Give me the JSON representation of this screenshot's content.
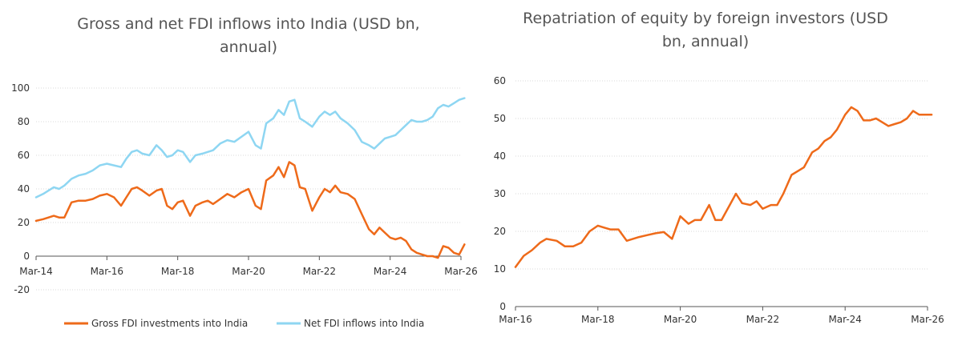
{
  "chart_data": [
    {
      "type": "line",
      "title": "Gross and net FDI inflows into India (USD bn, annual)",
      "xlabel": "",
      "ylabel": "",
      "x_tick_labels": [
        "Mar-14",
        "Mar-16",
        "Mar-18",
        "Mar-20",
        "Mar-22",
        "Mar-24",
        "Mar-26"
      ],
      "x_tick_years": [
        2014,
        2016,
        2018,
        2020,
        2022,
        2024,
        2026
      ],
      "ylim": [
        -20,
        100
      ],
      "y_ticks": [
        -20,
        0,
        20,
        40,
        60,
        80,
        100
      ],
      "grid": true,
      "legend": "bottom",
      "series": [
        {
          "name": "Gross FDI investments into India",
          "color": "#ee6a1a",
          "x": [
            2014.0,
            2014.2,
            2014.35,
            2014.5,
            2014.65,
            2014.8,
            2015.0,
            2015.2,
            2015.4,
            2015.6,
            2015.8,
            2016.0,
            2016.2,
            2016.4,
            2016.55,
            2016.7,
            2016.85,
            2017.0,
            2017.2,
            2017.4,
            2017.55,
            2017.7,
            2017.85,
            2018.0,
            2018.15,
            2018.35,
            2018.5,
            2018.7,
            2018.85,
            2019.0,
            2019.2,
            2019.4,
            2019.6,
            2019.8,
            2020.0,
            2020.2,
            2020.35,
            2020.5,
            2020.7,
            2020.85,
            2021.0,
            2021.15,
            2021.3,
            2021.45,
            2021.6,
            2021.8,
            2022.0,
            2022.15,
            2022.3,
            2022.45,
            2022.6,
            2022.8,
            2023.0,
            2023.2,
            2023.4,
            2023.55,
            2023.7,
            2023.85,
            2024.0,
            2024.15,
            2024.3,
            2024.45,
            2024.6,
            2024.75,
            2024.9,
            2025.05,
            2025.2,
            2025.35,
            2025.5,
            2025.65,
            2025.8,
            2025.95,
            2026.1
          ],
          "y": [
            21,
            22,
            23,
            24,
            23,
            23,
            32,
            33,
            33,
            34,
            36,
            37,
            35,
            30,
            35,
            40,
            41,
            39,
            36,
            39,
            40,
            30,
            28,
            32,
            33,
            24,
            30,
            32,
            33,
            31,
            34,
            37,
            35,
            38,
            40,
            30,
            28,
            45,
            48,
            53,
            47,
            56,
            54,
            41,
            40,
            27,
            35,
            40,
            38,
            42,
            38,
            37,
            34,
            25,
            16,
            13,
            17,
            14,
            11,
            10,
            11,
            9,
            4,
            2,
            1,
            0,
            0,
            -1,
            6,
            5,
            2,
            1,
            7
          ]
        },
        {
          "name": "Net FDI inflows into India",
          "color": "#8ed6f2",
          "x": [
            2014.0,
            2014.2,
            2014.35,
            2014.5,
            2014.65,
            2014.8,
            2015.0,
            2015.2,
            2015.4,
            2015.6,
            2015.8,
            2016.0,
            2016.2,
            2016.4,
            2016.55,
            2016.7,
            2016.85,
            2017.0,
            2017.2,
            2017.4,
            2017.55,
            2017.7,
            2017.85,
            2018.0,
            2018.15,
            2018.35,
            2018.5,
            2018.7,
            2018.85,
            2019.0,
            2019.2,
            2019.4,
            2019.6,
            2019.8,
            2020.0,
            2020.2,
            2020.35,
            2020.5,
            2020.7,
            2020.85,
            2021.0,
            2021.15,
            2021.3,
            2021.45,
            2021.6,
            2021.8,
            2022.0,
            2022.15,
            2022.3,
            2022.45,
            2022.6,
            2022.8,
            2023.0,
            2023.2,
            2023.4,
            2023.55,
            2023.7,
            2023.85,
            2024.0,
            2024.15,
            2024.3,
            2024.45,
            2024.6,
            2024.75,
            2024.9,
            2025.05,
            2025.2,
            2025.35,
            2025.5,
            2025.65,
            2025.8,
            2025.95,
            2026.1
          ],
          "y": [
            35,
            37,
            39,
            41,
            40,
            42,
            46,
            48,
            49,
            51,
            54,
            55,
            54,
            53,
            58,
            62,
            63,
            61,
            60,
            66,
            63,
            59,
            60,
            63,
            62,
            56,
            60,
            61,
            62,
            63,
            67,
            69,
            68,
            71,
            74,
            66,
            64,
            79,
            82,
            87,
            84,
            92,
            93,
            82,
            80,
            77,
            83,
            86,
            84,
            86,
            82,
            79,
            75,
            68,
            66,
            64,
            67,
            70,
            71,
            72,
            75,
            78,
            81,
            80,
            80,
            81,
            83,
            88,
            90,
            89,
            91,
            93,
            94
          ]
        }
      ]
    },
    {
      "type": "line",
      "title": "Repatriation of equity by foreign investors (USD bn, annual)",
      "xlabel": "",
      "ylabel": "",
      "x_tick_labels": [
        "Mar-16",
        "Mar-18",
        "Mar-20",
        "Mar-22",
        "Mar-24",
        "Mar-26"
      ],
      "x_tick_years": [
        2016,
        2018,
        2020,
        2022,
        2024,
        2026
      ],
      "ylim": [
        0,
        60
      ],
      "y_ticks": [
        0,
        10,
        20,
        30,
        40,
        50,
        60
      ],
      "grid": true,
      "legend": "none",
      "series": [
        {
          "color": "#ee6a1a",
          "x": [
            2016.0,
            2016.2,
            2016.4,
            2016.6,
            2016.75,
            2017.0,
            2017.2,
            2017.4,
            2017.6,
            2017.8,
            2018.0,
            2018.15,
            2018.3,
            2018.5,
            2018.7,
            2018.85,
            2019.0,
            2019.2,
            2019.4,
            2019.6,
            2019.8,
            2020.0,
            2020.2,
            2020.35,
            2020.5,
            2020.7,
            2020.85,
            2021.0,
            2021.2,
            2021.35,
            2021.5,
            2021.7,
            2021.85,
            2022.0,
            2022.2,
            2022.35,
            2022.5,
            2022.7,
            2022.85,
            2023.0,
            2023.2,
            2023.35,
            2023.5,
            2023.65,
            2023.8,
            2024.0,
            2024.15,
            2024.3,
            2024.45,
            2024.6,
            2024.75,
            2024.9,
            2025.05,
            2025.2,
            2025.35,
            2025.5,
            2025.65,
            2025.8,
            2025.95,
            2026.1
          ],
          "y": [
            10.5,
            13.5,
            15,
            17,
            18,
            17.5,
            16,
            16,
            17,
            20,
            21.5,
            21,
            20.5,
            20.5,
            17.5,
            18,
            18.5,
            19,
            19.5,
            19.8,
            18,
            24,
            22,
            23,
            23,
            27,
            23,
            23,
            27,
            30,
            27.5,
            27,
            28,
            26,
            27,
            27,
            30,
            35,
            36,
            37,
            41,
            42,
            44,
            45,
            47,
            51,
            53,
            52,
            49.5,
            49.5,
            50,
            49,
            48,
            48.5,
            49,
            50,
            52,
            51,
            51,
            51
          ]
        }
      ]
    }
  ]
}
